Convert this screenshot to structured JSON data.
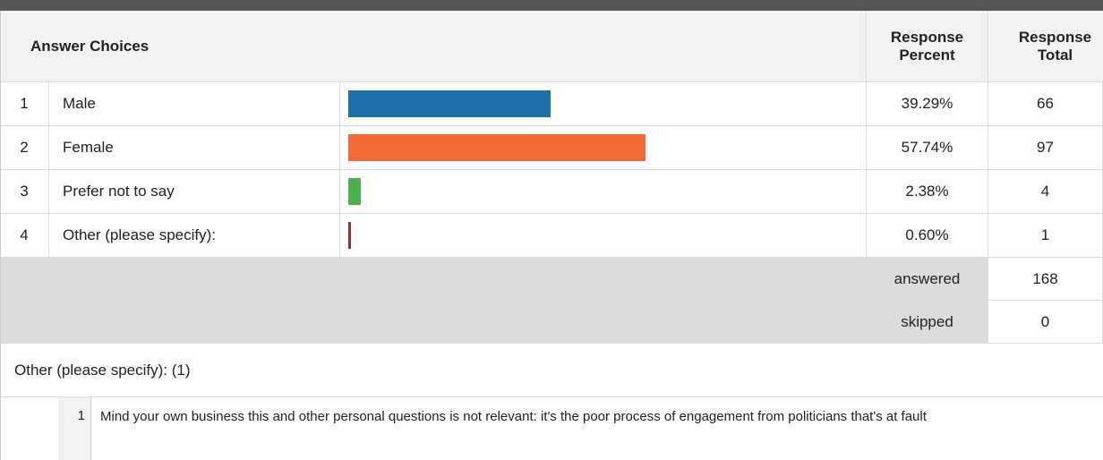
{
  "header": {
    "answer_choices": "Answer Choices",
    "response_percent": "Response Percent",
    "response_total": "Response Total"
  },
  "table": {
    "rows": [
      {
        "number": 1,
        "label": "Male",
        "percent": 39.29,
        "percent_label": "39.29%",
        "total": 66,
        "color": "#1f6fa8"
      },
      {
        "number": 2,
        "label": "Female",
        "percent": 57.74,
        "percent_label": "57.74%",
        "total": 97,
        "color": "#f26a36"
      },
      {
        "number": 3,
        "label": "Prefer not to say",
        "percent": 2.38,
        "percent_label": "2.38%",
        "total": 4,
        "color": "#4caf50"
      },
      {
        "number": 4,
        "label": "Other (please specify):",
        "percent": 0.6,
        "percent_label": "0.60%",
        "total": 1,
        "color": "#a52a2a"
      }
    ]
  },
  "summary": {
    "answered_label": "answered",
    "answered": 168,
    "skipped_label": "skipped",
    "skipped": 0
  },
  "other": {
    "title": "Other (please specify): (1)",
    "responses": [
      {
        "number": 1,
        "text": "Mind your own business this and other personal questions is not relevant: it's the poor process of engagement from politicians that's at fault"
      }
    ]
  }
}
